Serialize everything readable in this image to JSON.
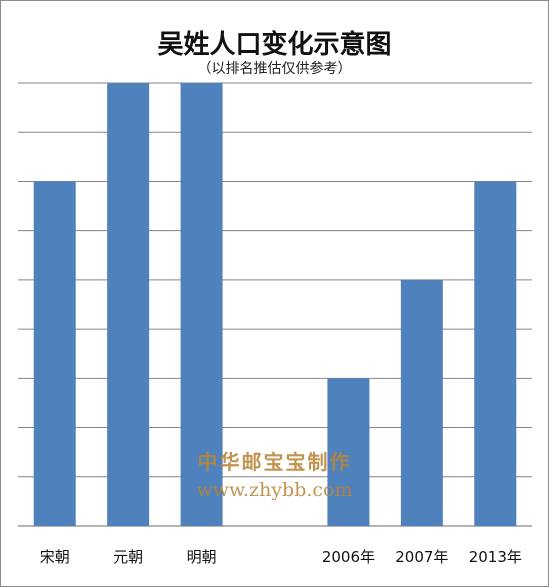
{
  "chart_data": {
    "type": "bar",
    "title": "吴姓人口变化示意图",
    "subtitle": "（以排名推估仅供参考）",
    "categories": [
      "宋朝",
      "元朝",
      "明朝",
      "",
      "2006年",
      "2007年",
      "2013年"
    ],
    "values": [
      7,
      9,
      9,
      null,
      3,
      5,
      7
    ],
    "ylim": [
      0,
      9
    ],
    "grid": true,
    "legend": false,
    "bar_color": "#4f81bd",
    "gridline_color": "#868686"
  },
  "watermark": {
    "line1": "中华邮宝宝制作",
    "line2": "www.zhybb.com"
  }
}
